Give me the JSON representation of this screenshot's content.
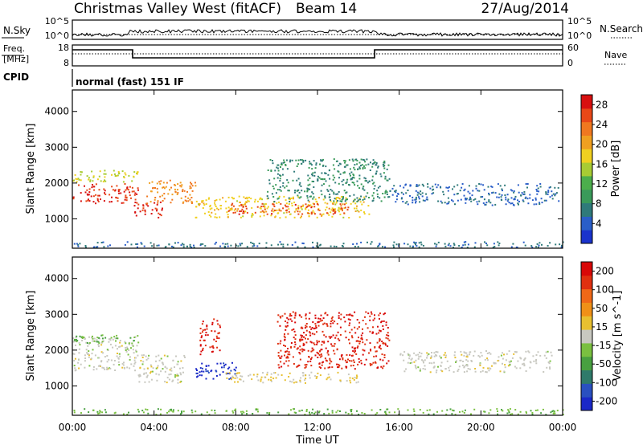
{
  "header": {
    "station": "Christmas Valley West (fitACF)",
    "beam": "Beam 14",
    "date": "27/Aug/2014"
  },
  "top_panels": {
    "nsky_label": "N.Sky",
    "nsky_ticks": [
      "10^5",
      "10^0"
    ],
    "nsearch_label": "N.Search",
    "nsearch_ticks": [
      "10^5",
      "10^0"
    ],
    "freq_label_1": "Freq.",
    "freq_label_2": "[MHz]",
    "freq_ticks": [
      "18",
      "8"
    ],
    "nave_label": "Nave",
    "nave_ticks": [
      "60",
      "0"
    ],
    "cpid_label": "CPID",
    "cpid_value": "normal (fast) 151 IF"
  },
  "colors": {
    "power": [
      "#1a33cc",
      "#2a5ec8",
      "#2f7a7a",
      "#3a9a5a",
      "#4cae4c",
      "#a8cc33",
      "#f0d020",
      "#f0a020",
      "#f07820",
      "#e84818",
      "#d81010"
    ],
    "velocity": [
      "#1a28c8",
      "#2a50c0",
      "#2f7a6a",
      "#48a040",
      "#7ac040",
      "#c8c8c0",
      "#e8c030",
      "#f09018",
      "#f06818",
      "#e03010",
      "#d80808"
    ]
  },
  "chart_data": [
    {
      "type": "heatmap",
      "name": "Power",
      "xlabel": "Time UT",
      "ylabel": "Slant Range [km]",
      "x_ticks": [
        "00:00",
        "04:00",
        "08:00",
        "12:00",
        "16:00",
        "20:00",
        "00:00"
      ],
      "xlim_hours": [
        0,
        24
      ],
      "ylim": [
        180,
        4600
      ],
      "y_ticks": [
        "1000",
        "2000",
        "3000",
        "4000"
      ],
      "colorbar_label": "Power [dB]",
      "colorbar_ticks": [
        "4",
        "8",
        "12",
        "16",
        "20",
        "24",
        "28"
      ],
      "colorbar_range": [
        0,
        30
      ],
      "blobs": [
        {
          "t0": 0.0,
          "t1": 3.2,
          "r0": 1450,
          "r1": 2000,
          "v": 27
        },
        {
          "t0": 0.0,
          "t1": 3.2,
          "r0": 2050,
          "r1": 2400,
          "v": 16
        },
        {
          "t0": 3.0,
          "t1": 4.4,
          "r0": 1050,
          "r1": 1500,
          "v": 28
        },
        {
          "t0": 3.6,
          "t1": 6.0,
          "r0": 1450,
          "r1": 2100,
          "v": 22
        },
        {
          "t0": 6.0,
          "t1": 14.5,
          "r0": 1050,
          "r1": 1650,
          "v": 18
        },
        {
          "t0": 7.5,
          "t1": 13.5,
          "r0": 1150,
          "r1": 1450,
          "v": 26
        },
        {
          "t0": 9.5,
          "t1": 15.5,
          "r0": 1500,
          "r1": 2700,
          "v": 8
        },
        {
          "t0": 15.5,
          "t1": 23.8,
          "r0": 1400,
          "r1": 2000,
          "v": 5
        },
        {
          "t0": 0.0,
          "t1": 24.0,
          "r0": 220,
          "r1": 380,
          "v": 6
        }
      ]
    },
    {
      "type": "heatmap",
      "name": "Velocity",
      "xlabel": "Time UT",
      "ylabel": "Slant Range [km]",
      "x_ticks": [
        "00:00",
        "04:00",
        "08:00",
        "12:00",
        "16:00",
        "20:00",
        "00:00"
      ],
      "xlim_hours": [
        0,
        24
      ],
      "ylim": [
        180,
        4600
      ],
      "y_ticks": [
        "1000",
        "2000",
        "3000",
        "4000"
      ],
      "colorbar_label": "Velocity [m s^-1]",
      "colorbar_ticks": [
        "200",
        "100",
        "50",
        "15",
        "-15",
        "-50",
        "-100",
        "-200"
      ],
      "colorbar_range": [
        -250,
        250
      ],
      "blobs": [
        {
          "t0": 0.0,
          "t1": 3.2,
          "r0": 1450,
          "r1": 2400,
          "v": 0
        },
        {
          "t0": 0.0,
          "t1": 3.2,
          "r0": 2200,
          "r1": 2450,
          "v": -70
        },
        {
          "t0": 3.2,
          "t1": 5.5,
          "r0": 1100,
          "r1": 1900,
          "v": 0
        },
        {
          "t0": 6.0,
          "t1": 8.0,
          "r0": 1200,
          "r1": 1700,
          "v": -220
        },
        {
          "t0": 6.2,
          "t1": 7.2,
          "r0": 1900,
          "r1": 2900,
          "v": 210
        },
        {
          "t0": 7.5,
          "t1": 14.0,
          "r0": 1100,
          "r1": 1400,
          "v": 30
        },
        {
          "t0": 10.0,
          "t1": 15.5,
          "r0": 1500,
          "r1": 3100,
          "v": 200
        },
        {
          "t0": 16.0,
          "t1": 23.5,
          "r0": 1400,
          "r1": 2000,
          "v": 0
        },
        {
          "t0": 0.0,
          "t1": 24.0,
          "r0": 220,
          "r1": 380,
          "v": -60
        }
      ]
    }
  ]
}
